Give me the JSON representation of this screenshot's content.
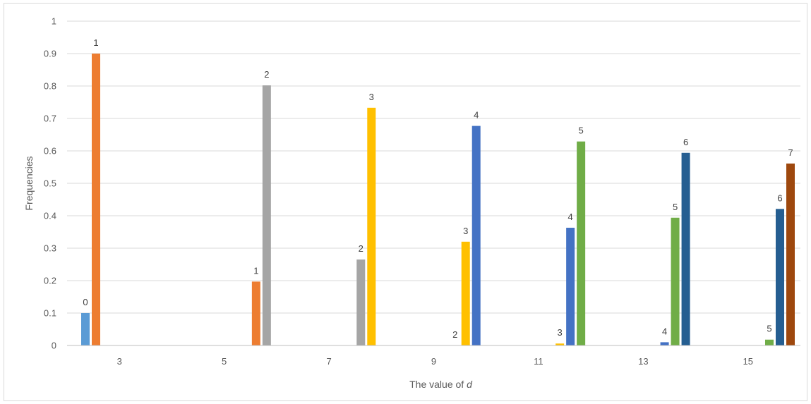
{
  "chart_data": {
    "type": "bar",
    "title": "",
    "xlabel_prefix": "The value of ",
    "xlabel_var": "d",
    "ylabel": "Frequencies",
    "ylim": [
      0,
      1
    ],
    "yticks": [
      "0",
      "0.1",
      "0.2",
      "0.3",
      "0.4",
      "0.5",
      "0.6",
      "0.7",
      "0.8",
      "0.9",
      "1"
    ],
    "categories": [
      "3",
      "5",
      "7",
      "9",
      "11",
      "13",
      "15"
    ],
    "grid": true,
    "series": [
      {
        "color": "#5b9bd5",
        "values": [
          0.1,
          0,
          0,
          0,
          0,
          0,
          0
        ]
      },
      {
        "color": "#ed7d31",
        "values": [
          0.9,
          0.197,
          0,
          0,
          0,
          0,
          0
        ]
      },
      {
        "color": "#a5a5a5",
        "values": [
          0,
          0.802,
          0.265,
          0,
          0,
          0,
          0
        ]
      },
      {
        "color": "#ffc000",
        "values": [
          0,
          0,
          0.733,
          0.32,
          0.006,
          0,
          0
        ]
      },
      {
        "color": "#4472c4",
        "values": [
          0,
          0,
          0,
          0.677,
          0.363,
          0.01,
          0
        ]
      },
      {
        "color": "#70ad47",
        "values": [
          0,
          0,
          0,
          0,
          0.629,
          0.394,
          0.018
        ]
      },
      {
        "color": "#255e91",
        "values": [
          0,
          0,
          0,
          0,
          0,
          0.594,
          0.421
        ]
      },
      {
        "color": "#9e480e",
        "values": [
          0,
          0,
          0,
          0,
          0,
          0,
          0.561
        ]
      }
    ],
    "data_labels": [
      {
        "category": "3",
        "series": 0,
        "text": "0"
      },
      {
        "category": "3",
        "series": 1,
        "text": "1"
      },
      {
        "category": "5",
        "series": 1,
        "text": "1"
      },
      {
        "category": "5",
        "series": 2,
        "text": "2"
      },
      {
        "category": "7",
        "series": 2,
        "text": "2"
      },
      {
        "category": "7",
        "series": 3,
        "text": "3"
      },
      {
        "category": "9",
        "series": 2,
        "text": "2"
      },
      {
        "category": "9",
        "series": 3,
        "text": "3"
      },
      {
        "category": "9",
        "series": 4,
        "text": "4"
      },
      {
        "category": "11",
        "series": 3,
        "text": "3"
      },
      {
        "category": "11",
        "series": 4,
        "text": "4"
      },
      {
        "category": "11",
        "series": 5,
        "text": "5"
      },
      {
        "category": "13",
        "series": 4,
        "text": "4"
      },
      {
        "category": "13",
        "series": 5,
        "text": "5"
      },
      {
        "category": "13",
        "series": 6,
        "text": "6"
      },
      {
        "category": "15",
        "series": 5,
        "text": "5"
      },
      {
        "category": "15",
        "series": 6,
        "text": "6"
      },
      {
        "category": "15",
        "series": 7,
        "text": "7"
      }
    ]
  }
}
